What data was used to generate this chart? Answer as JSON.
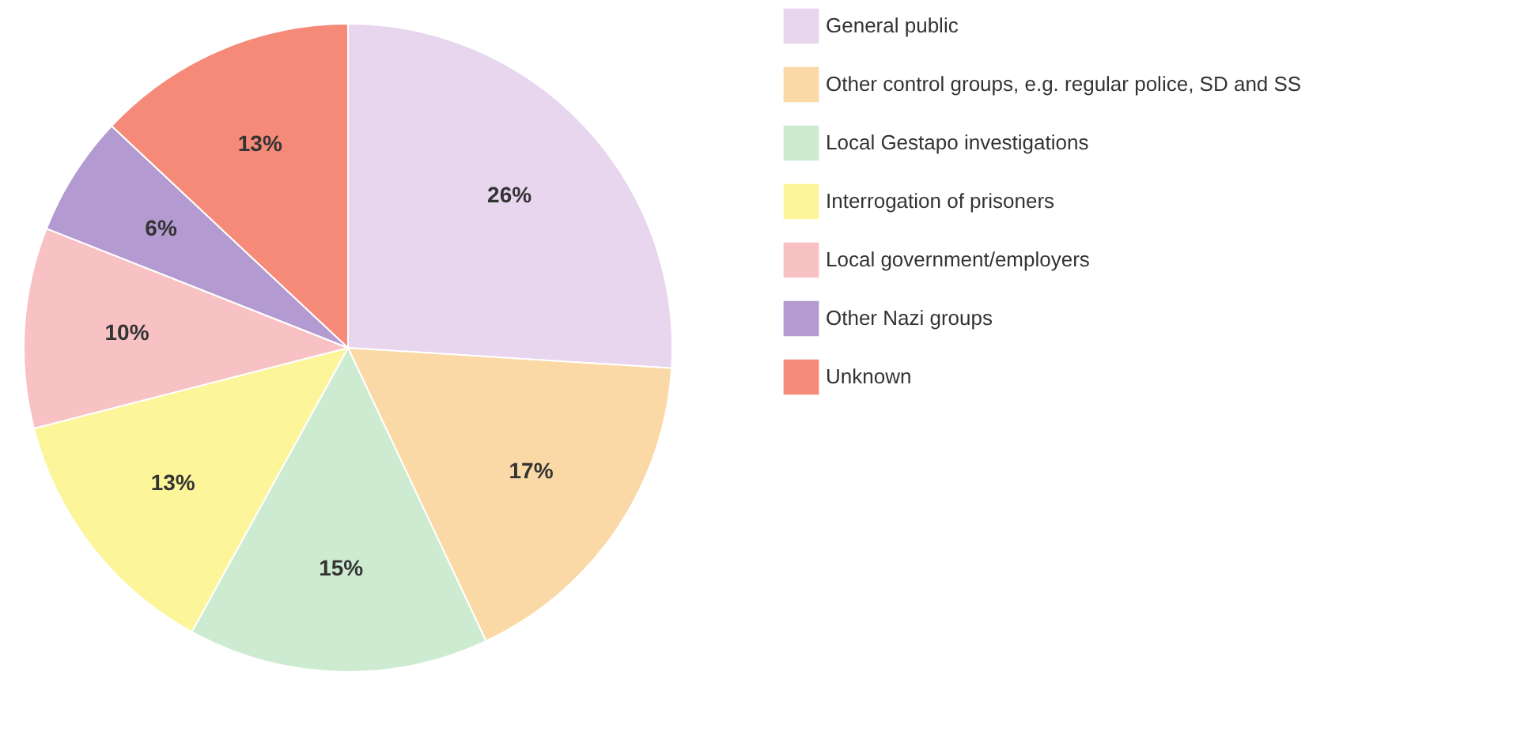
{
  "chart_data": {
    "type": "pie",
    "categories": [
      "General public",
      "Other control groups, e.g. regular police, SD and SS",
      "Local Gestapo investigations",
      "Interrogation of prisoners",
      "Local government/employers",
      "Other Nazi groups",
      "Unknown"
    ],
    "values": [
      26,
      17,
      15,
      13,
      10,
      6,
      13
    ],
    "value_labels": [
      "26%",
      "17%",
      "15%",
      "13%",
      "10%",
      "6%",
      "13%"
    ],
    "colors": [
      "#e8d5ee",
      "#fbd9a6",
      "#cdebd0",
      "#fdf59a",
      "#f8c2c4",
      "#b39ad0",
      "#f58a78"
    ],
    "legend": "right"
  }
}
